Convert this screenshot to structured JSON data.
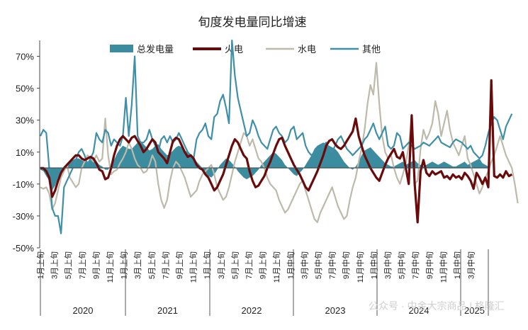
{
  "chart_data": {
    "type": "line",
    "title": "旬度发电量同比增速",
    "ylim": [
      -50,
      80
    ],
    "y_ticks": [
      "-50%",
      "-30%",
      "-10%",
      "10%",
      "30%",
      "50%",
      "70%"
    ],
    "y_tick_values": [
      -50,
      -30,
      -10,
      10,
      30,
      50,
      70
    ],
    "x_tick_labels": [
      "1月上旬",
      "3月上旬",
      "5月上旬",
      "7月上旬",
      "9月上旬",
      "11月上旬",
      "1月上旬",
      "3月上旬",
      "5月上旬",
      "7月上旬",
      "9月上旬",
      "11月上旬",
      "1月上旬",
      "3月上旬",
      "5月上旬",
      "7月上旬",
      "9月上旬",
      "11月上旬",
      "1月中旬",
      "3月中旬",
      "5月中旬",
      "7月中旬",
      "9月中旬",
      "11月中旬",
      "1月中旬",
      "3月中旬",
      "5月中旬",
      "7月中旬",
      "9月中旬",
      "11月中旬",
      "1月中旬",
      "3月中旬"
    ],
    "years": [
      "2020",
      "2021",
      "2022",
      "2023",
      "2024",
      "2025"
    ],
    "legend_position": "top",
    "grid": false,
    "series": [
      {
        "name": "总发电量",
        "kind": "area",
        "color": "#3B8C9E",
        "values": [
          -1,
          -2,
          -5,
          -8,
          -14,
          -11,
          -6,
          -2,
          0,
          2,
          4,
          5,
          6,
          6,
          5,
          4,
          4,
          5,
          6,
          4,
          2,
          1,
          -1,
          -1,
          2,
          5,
          9,
          12,
          14,
          13,
          12,
          12,
          14,
          16,
          17,
          15,
          13,
          11,
          12,
          14,
          15,
          12,
          10,
          8,
          9,
          11,
          13,
          14,
          13,
          11,
          10,
          8,
          6,
          4,
          2,
          0,
          -3,
          -5,
          -6,
          -4,
          -1,
          2,
          4,
          6,
          5,
          3,
          1,
          -2,
          -4,
          -6,
          -7,
          -6,
          -5,
          -3,
          -1,
          2,
          4,
          6,
          8,
          10,
          9,
          7,
          5,
          2,
          0,
          -2,
          -4,
          -5,
          -3,
          -1,
          2,
          5,
          8,
          12,
          14,
          15,
          16,
          15,
          14,
          13,
          12,
          10,
          7,
          4,
          2,
          0,
          -1,
          1,
          4,
          8,
          11,
          12,
          13,
          11,
          9,
          7,
          5,
          3,
          2,
          1,
          1,
          2,
          3,
          4,
          2,
          3,
          4,
          5,
          3,
          2,
          1,
          2,
          3,
          4,
          3,
          2,
          3,
          4,
          3,
          2,
          1,
          1,
          2,
          3,
          4,
          2,
          3,
          4,
          5,
          6,
          3,
          2,
          1
        ]
      },
      {
        "name": "火电",
        "kind": "line",
        "color": "#6B0A0A",
        "values": [
          0,
          0,
          -2,
          -6,
          -18,
          -14,
          -8,
          -3,
          0,
          2,
          4,
          6,
          8,
          8,
          6,
          5,
          6,
          7,
          6,
          3,
          -1,
          -2,
          -7,
          -6,
          0,
          8,
          14,
          18,
          20,
          18,
          16,
          19,
          20,
          17,
          14,
          10,
          12,
          15,
          18,
          16,
          10,
          8,
          6,
          3,
          10,
          17,
          19,
          18,
          14,
          10,
          7,
          8,
          6,
          2,
          0,
          -1,
          -4,
          -6,
          -10,
          -14,
          -12,
          -8,
          -4,
          2,
          8,
          14,
          18,
          16,
          12,
          8,
          6,
          -2,
          -8,
          -12,
          -11,
          -8,
          -5,
          0,
          4,
          9,
          14,
          18,
          19,
          14,
          10,
          6,
          2,
          -1,
          -4,
          -8,
          -12,
          -14,
          -10,
          -6,
          -2,
          3,
          8,
          14,
          17,
          18,
          15,
          13,
          12,
          14,
          17,
          20,
          23,
          31,
          20,
          14,
          8,
          4,
          0,
          -3,
          -6,
          -8,
          -3,
          2,
          6,
          9,
          12,
          7,
          6,
          10,
          0,
          -10,
          33,
          -10,
          -34,
          -2,
          5,
          -3,
          -5,
          -2,
          -4,
          -3,
          -2,
          -6,
          -5,
          -7,
          -4,
          -6,
          -5,
          -7,
          -3,
          -5,
          -8,
          -13,
          -3,
          -6,
          -10,
          -6,
          -12,
          55,
          -5,
          -6,
          -4,
          -6,
          -2,
          -5,
          -4
        ]
      },
      {
        "name": "水电",
        "kind": "line",
        "color": "#BDBAAB",
        "values": [
          -12,
          -13,
          -12,
          -16,
          -26,
          -22,
          -14,
          -6,
          -2,
          2,
          -6,
          -9,
          -12,
          -10,
          0,
          4,
          8,
          6,
          4,
          8,
          4,
          6,
          31,
          8,
          -4,
          -2,
          -1,
          3,
          6,
          10,
          16,
          12,
          6,
          2,
          0,
          -3,
          -2,
          2,
          8,
          4,
          -10,
          -20,
          -25,
          -20,
          -8,
          0,
          4,
          2,
          -2,
          -6,
          -12,
          -18,
          -16,
          -14,
          -8,
          -4,
          -2,
          0,
          2,
          -4,
          -12,
          -16,
          -20,
          -18,
          -12,
          -4,
          4,
          10,
          16,
          22,
          20,
          14,
          18,
          12,
          6,
          4,
          0,
          -6,
          -10,
          -12,
          -14,
          -20,
          -24,
          -28,
          -26,
          -22,
          -18,
          -14,
          -10,
          -8,
          -14,
          -20,
          -26,
          -32,
          -34,
          -28,
          -24,
          -20,
          -16,
          -12,
          -18,
          -24,
          -28,
          -32,
          -30,
          -20,
          -12,
          -6,
          4,
          12,
          24,
          40,
          52,
          46,
          66,
          40,
          20,
          10,
          6,
          8,
          0,
          -6,
          -10,
          -4,
          3,
          14,
          30,
          -10,
          -8,
          12,
          24,
          18,
          22,
          28,
          42,
          34,
          20,
          28,
          36,
          24,
          16,
          12,
          8,
          14,
          20,
          6,
          2,
          -4,
          -10,
          -16,
          -12,
          -6,
          -2,
          4,
          8,
          14,
          20,
          14,
          8,
          4,
          0,
          -10,
          -22
        ]
      },
      {
        "name": "其他",
        "kind": "line",
        "color": "#3E8FA8",
        "values": [
          20,
          24,
          22,
          0,
          -25,
          -30,
          -30,
          -41,
          -12,
          -8,
          -4,
          0,
          5,
          10,
          12,
          8,
          2,
          6,
          10,
          22,
          18,
          16,
          24,
          22,
          14,
          18,
          16,
          14,
          20,
          44,
          20,
          40,
          70,
          20,
          16,
          16,
          18,
          24,
          18,
          14,
          10,
          18,
          20,
          16,
          20,
          16,
          18,
          22,
          18,
          14,
          10,
          8,
          6,
          18,
          22,
          24,
          28,
          20,
          18,
          32,
          34,
          42,
          46,
          38,
          28,
          80,
          58,
          44,
          36,
          28,
          20,
          22,
          30,
          26,
          20,
          16,
          14,
          12,
          18,
          24,
          26,
          22,
          20,
          16,
          18,
          24,
          26,
          18,
          20,
          22,
          14,
          10,
          8,
          10,
          12,
          12,
          14,
          16,
          12,
          10,
          14,
          18,
          20,
          16,
          12,
          10,
          8,
          10,
          12,
          14,
          18,
          20,
          24,
          28,
          22,
          18,
          22,
          26,
          14,
          12,
          14,
          22,
          20,
          12,
          14,
          16,
          14,
          12,
          13,
          14,
          16,
          15,
          14,
          16,
          18,
          20,
          16,
          15,
          14,
          13,
          16,
          18,
          17,
          16,
          14,
          12,
          14,
          10,
          8,
          6,
          8,
          14,
          22,
          28,
          32,
          30,
          24,
          18,
          26,
          30,
          34
        ]
      }
    ]
  },
  "watermark": "公众号 · 中金大宗商品 | 格隆汇"
}
